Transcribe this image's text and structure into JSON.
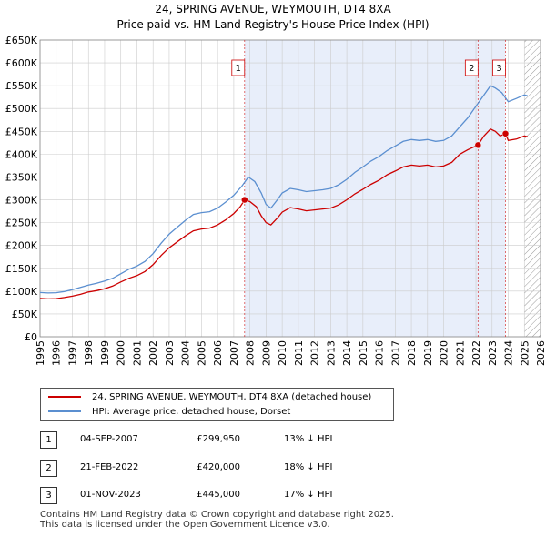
{
  "title": "24, SPRING AVENUE, WEYMOUTH, DT4 8XA",
  "subtitle": "Price paid vs. HM Land Registry's House Price Index (HPI)",
  "legend": {
    "property": "24, SPRING AVENUE, WEYMOUTH, DT4 8XA (detached house)",
    "hpi": "HPI: Average price, detached house, Dorset"
  },
  "sales": [
    {
      "num": "1",
      "date": "04-SEP-2007",
      "price": "£299,950",
      "hpi": "13% ↓ HPI"
    },
    {
      "num": "2",
      "date": "21-FEB-2022",
      "price": "£420,000",
      "hpi": "18% ↓ HPI"
    },
    {
      "num": "3",
      "date": "01-NOV-2023",
      "price": "£445,000",
      "hpi": "17% ↓ HPI"
    }
  ],
  "footer": {
    "line1": "Contains HM Land Registry data © Crown copyright and database right 2025.",
    "line2": "This data is licensed under the Open Government Licence v3.0."
  },
  "colors": {
    "property": "#cc0000",
    "hpi": "#5b8fd0",
    "shade": "#e8eefa",
    "grid": "#cccccc"
  },
  "chart_data": {
    "type": "line",
    "xlim": [
      1995,
      2026
    ],
    "ylim": [
      0,
      650000
    ],
    "x_ticks": [
      "1995",
      "1996",
      "1997",
      "1998",
      "1999",
      "2000",
      "2001",
      "2002",
      "2003",
      "2004",
      "2005",
      "2006",
      "2007",
      "2008",
      "2009",
      "2010",
      "2011",
      "2012",
      "2013",
      "2014",
      "2015",
      "2016",
      "2017",
      "2018",
      "2019",
      "2020",
      "2021",
      "2022",
      "2023",
      "2024",
      "2025",
      "2026"
    ],
    "y_ticks": [
      {
        "value": 0,
        "label": "£0"
      },
      {
        "value": 50000,
        "label": "£50K"
      },
      {
        "value": 100000,
        "label": "£100K"
      },
      {
        "value": 150000,
        "label": "£150K"
      },
      {
        "value": 200000,
        "label": "£200K"
      },
      {
        "value": 250000,
        "label": "£250K"
      },
      {
        "value": 300000,
        "label": "£300K"
      },
      {
        "value": 350000,
        "label": "£350K"
      },
      {
        "value": 400000,
        "label": "£400K"
      },
      {
        "value": 450000,
        "label": "£450K"
      },
      {
        "value": 500000,
        "label": "£500K"
      },
      {
        "value": 550000,
        "label": "£550K"
      },
      {
        "value": 600000,
        "label": "£600K"
      },
      {
        "value": 650000,
        "label": "£650K"
      }
    ],
    "grid": true,
    "shaded_span": [
      2007.67,
      2023.83
    ],
    "hatched_after": 2025.0,
    "markers": [
      {
        "label": "1",
        "x": 2007.67,
        "y": 299950
      },
      {
        "label": "2",
        "x": 2022.13,
        "y": 420000
      },
      {
        "label": "3",
        "x": 2023.83,
        "y": 445000
      }
    ],
    "series": [
      {
        "name": "HPI: Average price, detached house, Dorset",
        "points": [
          [
            1995.0,
            97000
          ],
          [
            1995.5,
            96000
          ],
          [
            1996.0,
            96500
          ],
          [
            1996.5,
            99000
          ],
          [
            1997.0,
            103000
          ],
          [
            1997.5,
            108000
          ],
          [
            1998.0,
            113000
          ],
          [
            1998.5,
            117000
          ],
          [
            1999.0,
            122000
          ],
          [
            1999.5,
            128000
          ],
          [
            2000.0,
            138000
          ],
          [
            2000.5,
            148000
          ],
          [
            2001.0,
            155000
          ],
          [
            2001.5,
            165000
          ],
          [
            2002.0,
            182000
          ],
          [
            2002.5,
            205000
          ],
          [
            2003.0,
            225000
          ],
          [
            2003.5,
            240000
          ],
          [
            2004.0,
            255000
          ],
          [
            2004.5,
            268000
          ],
          [
            2005.0,
            272000
          ],
          [
            2005.5,
            274000
          ],
          [
            2006.0,
            282000
          ],
          [
            2006.5,
            295000
          ],
          [
            2007.0,
            310000
          ],
          [
            2007.5,
            330000
          ],
          [
            2007.9,
            350000
          ],
          [
            2008.3,
            340000
          ],
          [
            2008.7,
            315000
          ],
          [
            2009.0,
            290000
          ],
          [
            2009.3,
            282000
          ],
          [
            2009.7,
            300000
          ],
          [
            2010.0,
            315000
          ],
          [
            2010.5,
            325000
          ],
          [
            2011.0,
            322000
          ],
          [
            2011.5,
            318000
          ],
          [
            2012.0,
            320000
          ],
          [
            2012.5,
            322000
          ],
          [
            2013.0,
            325000
          ],
          [
            2013.5,
            333000
          ],
          [
            2014.0,
            345000
          ],
          [
            2014.5,
            360000
          ],
          [
            2015.0,
            372000
          ],
          [
            2015.5,
            385000
          ],
          [
            2016.0,
            395000
          ],
          [
            2016.5,
            408000
          ],
          [
            2017.0,
            418000
          ],
          [
            2017.5,
            428000
          ],
          [
            2018.0,
            432000
          ],
          [
            2018.5,
            430000
          ],
          [
            2019.0,
            432000
          ],
          [
            2019.5,
            428000
          ],
          [
            2020.0,
            430000
          ],
          [
            2020.5,
            440000
          ],
          [
            2021.0,
            460000
          ],
          [
            2021.5,
            480000
          ],
          [
            2022.0,
            505000
          ],
          [
            2022.5,
            530000
          ],
          [
            2022.9,
            550000
          ],
          [
            2023.2,
            545000
          ],
          [
            2023.6,
            535000
          ],
          [
            2024.0,
            515000
          ],
          [
            2024.5,
            522000
          ],
          [
            2025.0,
            530000
          ],
          [
            2025.2,
            528000
          ]
        ]
      },
      {
        "name": "24, SPRING AVENUE, WEYMOUTH, DT4 8XA (detached house)",
        "points": [
          [
            1995.0,
            84000
          ],
          [
            1995.5,
            83000
          ],
          [
            1996.0,
            83500
          ],
          [
            1996.5,
            86000
          ],
          [
            1997.0,
            89000
          ],
          [
            1997.5,
            93000
          ],
          [
            1998.0,
            98000
          ],
          [
            1998.5,
            101000
          ],
          [
            1999.0,
            105000
          ],
          [
            1999.5,
            111000
          ],
          [
            2000.0,
            120000
          ],
          [
            2000.5,
            128000
          ],
          [
            2001.0,
            134000
          ],
          [
            2001.5,
            143000
          ],
          [
            2002.0,
            158000
          ],
          [
            2002.5,
            178000
          ],
          [
            2003.0,
            195000
          ],
          [
            2003.5,
            208000
          ],
          [
            2004.0,
            221000
          ],
          [
            2004.5,
            232000
          ],
          [
            2005.0,
            236000
          ],
          [
            2005.5,
            238000
          ],
          [
            2006.0,
            245000
          ],
          [
            2006.5,
            256000
          ],
          [
            2007.0,
            270000
          ],
          [
            2007.4,
            285000
          ],
          [
            2007.67,
            299950
          ],
          [
            2008.0,
            296000
          ],
          [
            2008.4,
            285000
          ],
          [
            2008.7,
            265000
          ],
          [
            2009.0,
            250000
          ],
          [
            2009.3,
            245000
          ],
          [
            2009.7,
            260000
          ],
          [
            2010.0,
            273000
          ],
          [
            2010.5,
            283000
          ],
          [
            2011.0,
            280000
          ],
          [
            2011.5,
            276000
          ],
          [
            2012.0,
            278000
          ],
          [
            2012.5,
            280000
          ],
          [
            2013.0,
            282000
          ],
          [
            2013.5,
            289000
          ],
          [
            2014.0,
            300000
          ],
          [
            2014.5,
            313000
          ],
          [
            2015.0,
            323000
          ],
          [
            2015.5,
            334000
          ],
          [
            2016.0,
            343000
          ],
          [
            2016.5,
            355000
          ],
          [
            2017.0,
            363000
          ],
          [
            2017.5,
            372000
          ],
          [
            2018.0,
            376000
          ],
          [
            2018.5,
            374000
          ],
          [
            2019.0,
            376000
          ],
          [
            2019.5,
            372000
          ],
          [
            2020.0,
            374000
          ],
          [
            2020.5,
            382000
          ],
          [
            2021.0,
            400000
          ],
          [
            2021.5,
            410000
          ],
          [
            2022.13,
            420000
          ],
          [
            2022.5,
            440000
          ],
          [
            2022.9,
            455000
          ],
          [
            2023.2,
            450000
          ],
          [
            2023.5,
            440000
          ],
          [
            2023.83,
            445000
          ],
          [
            2024.0,
            430000
          ],
          [
            2024.5,
            433000
          ],
          [
            2025.0,
            440000
          ],
          [
            2025.2,
            438000
          ]
        ]
      }
    ]
  }
}
